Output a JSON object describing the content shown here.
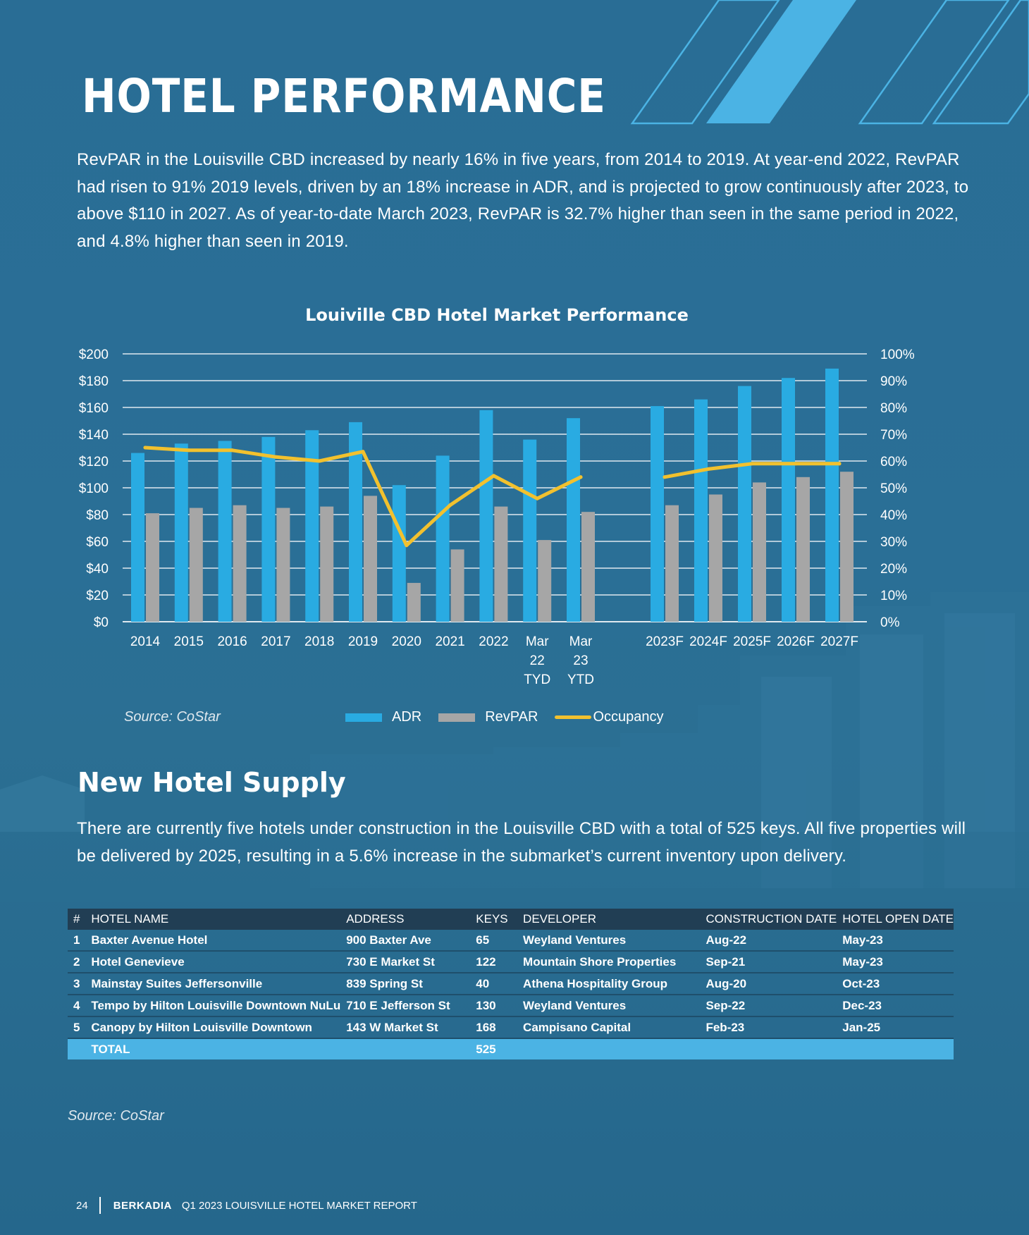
{
  "page": {
    "title": "HOTEL PERFORMANCE",
    "intro": "RevPAR in the Louisville CBD increased by nearly 16% in five years, from 2014 to 2019. At year-end 2022, RevPAR had risen to 91% 2019 levels, driven by an 18% increase in ADR, and is projected to grow continuously after 2023, to above $110 in 2027. As of year-to-date March 2023, RevPAR is 32.7% higher than seen in the same period in 2022, and 4.8% higher than seen in 2019."
  },
  "chart_data": {
    "type": "bar",
    "title": "Louiville CBD Hotel Market Performance",
    "categories": [
      "2014",
      "2015",
      "2016",
      "2017",
      "2018",
      "2019",
      "2020",
      "2021",
      "2022",
      "Mar 22 TYD",
      "Mar 23 YTD",
      "2023F",
      "2024F",
      "2025F",
      "2026F",
      "2027F"
    ],
    "category_lines": [
      [
        "2014"
      ],
      [
        "2015"
      ],
      [
        "2016"
      ],
      [
        "2017"
      ],
      [
        "2018"
      ],
      [
        "2019"
      ],
      [
        "2020"
      ],
      [
        "2021"
      ],
      [
        "2022"
      ],
      [
        "Mar",
        "22",
        "TYD"
      ],
      [
        "Mar",
        "23",
        "YTD"
      ],
      [
        "2023F"
      ],
      [
        "2024F"
      ],
      [
        "2025F"
      ],
      [
        "2026F"
      ],
      [
        "2027F"
      ]
    ],
    "series": [
      {
        "name": "ADR",
        "type": "bar",
        "axis": "left",
        "color": "#29abe2",
        "values": [
          126,
          133,
          135,
          138,
          143,
          149,
          102,
          124,
          158,
          136,
          152,
          161,
          166,
          176,
          182,
          189
        ]
      },
      {
        "name": "RevPAR",
        "type": "bar",
        "axis": "left",
        "color": "#a6a6a6",
        "values": [
          81,
          85,
          87,
          85,
          86,
          94,
          29,
          54,
          86,
          61,
          82,
          87,
          95,
          104,
          108,
          112
        ]
      },
      {
        "name": "Occupancy",
        "type": "line",
        "axis": "right",
        "color": "#f2c12e",
        "segments": [
          [
            0,
            10
          ],
          [
            11,
            15
          ]
        ],
        "values": [
          65,
          64,
          64,
          61.5,
          60,
          63.5,
          28.5,
          43.5,
          54.5,
          46,
          54,
          54,
          57,
          59,
          59,
          59
        ]
      }
    ],
    "y_left": {
      "min": 0,
      "max": 200,
      "step": 20,
      "ticks": [
        "$0",
        "$20",
        "$40",
        "$60",
        "$80",
        "$100",
        "$120",
        "$140",
        "$160",
        "$180",
        "$200"
      ]
    },
    "y_right": {
      "min": 0,
      "max": 100,
      "step": 10,
      "ticks": [
        "0%",
        "10%",
        "20%",
        "30%",
        "40%",
        "50%",
        "60%",
        "70%",
        "80%",
        "90%",
        "100%"
      ]
    },
    "grid": true,
    "legend": "bottom-center"
  },
  "chart_source": "Source: CoStar",
  "supply": {
    "title": "New Hotel Supply",
    "text": "There are currently five hotels under construction in the Louisville CBD with a total of 525 keys. All five properties will be delivered by 2025, resulting in a 5.6% increase in the submarket’s current inventory upon delivery.",
    "headers": {
      "num": "#",
      "name": "HOTEL NAME",
      "address": "ADDRESS",
      "keys": "KEYS",
      "developer": "DEVELOPER",
      "construction": "CONSTRUCTION DATE",
      "open": "HOTEL OPEN DATE"
    },
    "rows": [
      {
        "num": "1",
        "name": "Baxter Avenue Hotel",
        "address": "900 Baxter Ave",
        "keys": "65",
        "developer": "Weyland Ventures",
        "construction": "Aug-22",
        "open": "May-23"
      },
      {
        "num": "2",
        "name": "Hotel Genevieve",
        "address": "730 E Market St",
        "keys": "122",
        "developer": "Mountain Shore Properties",
        "construction": "Sep-21",
        "open": "May-23"
      },
      {
        "num": "3",
        "name": "Mainstay Suites Jeffersonville",
        "address": "839 Spring St",
        "keys": "40",
        "developer": "Athena Hospitality Group",
        "construction": "Aug-20",
        "open": "Oct-23"
      },
      {
        "num": "4",
        "name": "Tempo by Hilton Louisville Downtown NuLu",
        "address": "710 E Jefferson St",
        "keys": "130",
        "developer": "Weyland Ventures",
        "construction": "Sep-22",
        "open": "Dec-23"
      },
      {
        "num": "5",
        "name": "Canopy by Hilton Louisville Downtown",
        "address": "143 W Market St",
        "keys": "168",
        "developer": "Campisano Capital",
        "construction": "Feb-23",
        "open": "Jan-25"
      }
    ],
    "total": {
      "label": "TOTAL",
      "keys": "525"
    },
    "source": "Source: CoStar"
  },
  "footer": {
    "page_number": "24",
    "brand": "BERKADIA",
    "report": "Q1 2023 LOUISVILLE HOTEL MARKET REPORT"
  },
  "colors": {
    "background": "#296d95",
    "accent": "#4bb3e4",
    "adr": "#29abe2",
    "revpar": "#a6a6a6",
    "occupancy": "#f2c12e"
  }
}
